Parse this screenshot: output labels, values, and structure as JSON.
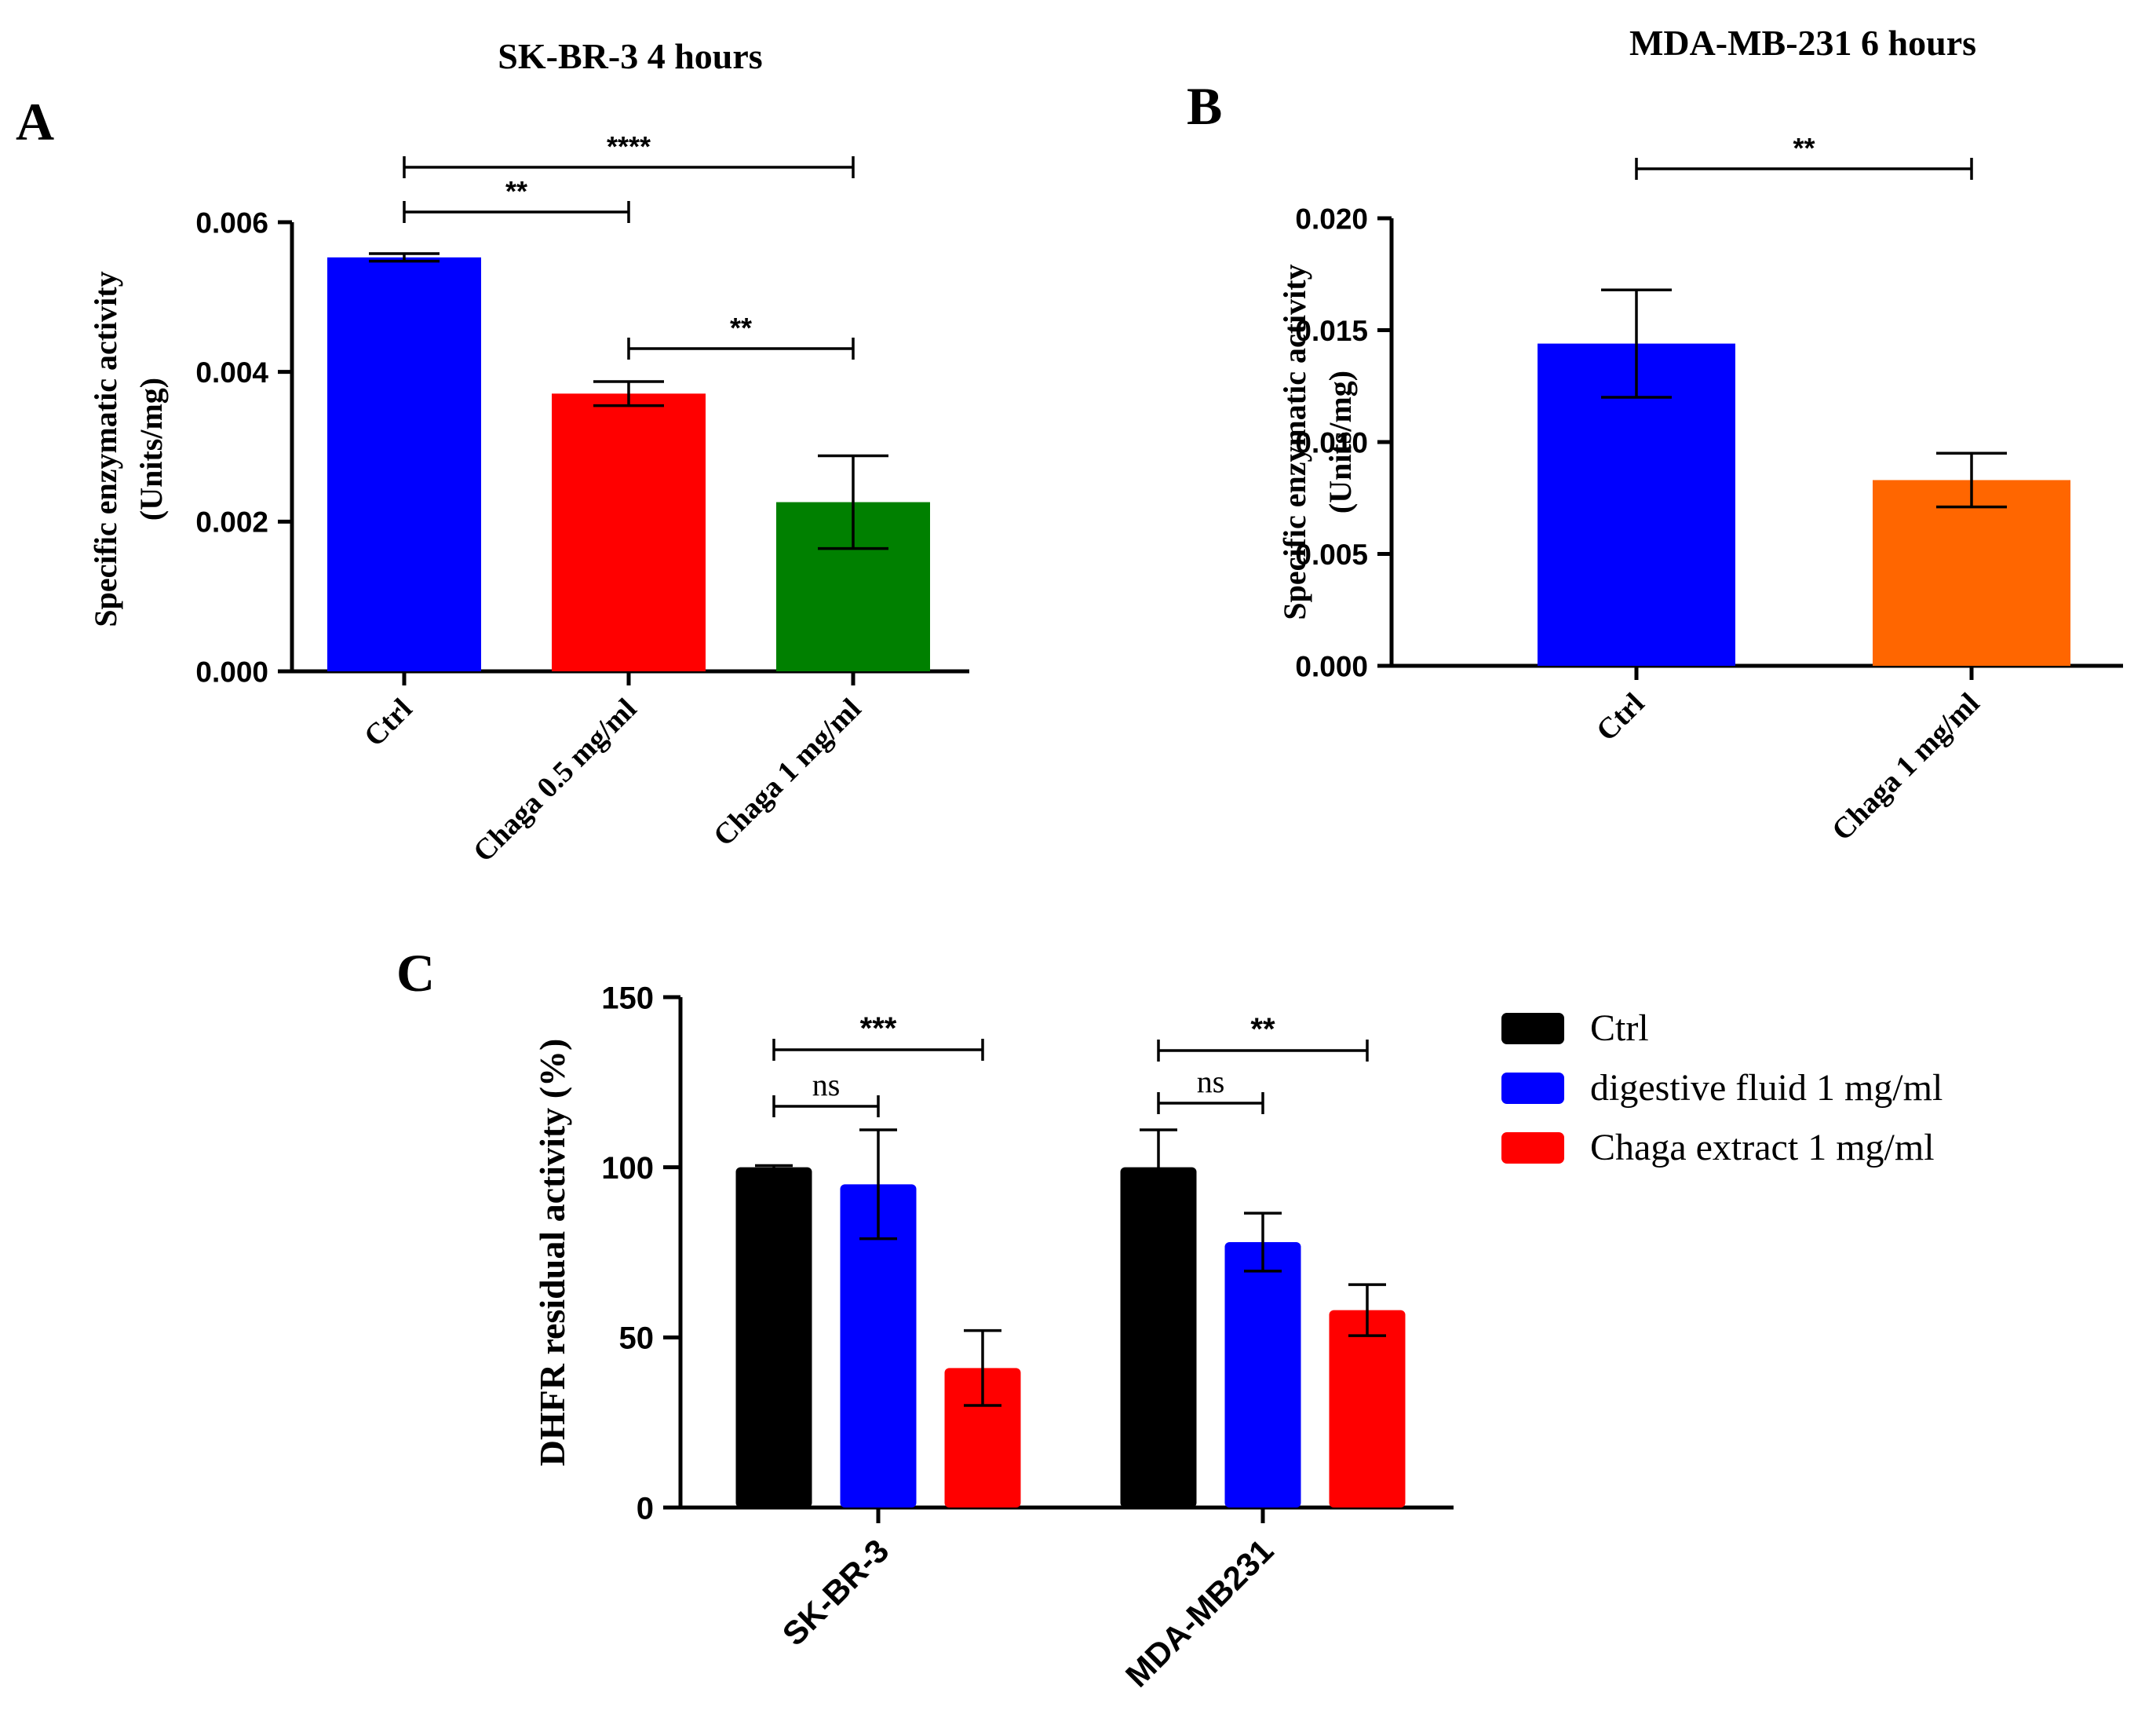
{
  "panels": {
    "A": {
      "letter": "A"
    },
    "B": {
      "letter": "B"
    },
    "C": {
      "letter": "C"
    }
  },
  "chart_data": [
    {
      "id": "A",
      "type": "bar",
      "title": "SK-BR-3 4 hours",
      "ylabel": [
        "Specific enzymatic activity",
        "(Units/mg)"
      ],
      "xlabel": "",
      "categories": [
        "Ctrl",
        "Chaga 0.5 mg/ml",
        "Chaga 1 mg/ml"
      ],
      "values": [
        0.00553,
        0.00371,
        0.00226
      ],
      "errors": [
        5e-05,
        0.00016,
        0.00062
      ],
      "colors": [
        "#0000ff",
        "#ff0000",
        "#008000"
      ],
      "ylim": [
        0,
        0.006
      ],
      "yticks": [
        0,
        0.002,
        0.004,
        0.006
      ],
      "ytick_labels": [
        "0.000",
        "0.002",
        "0.004",
        "0.006"
      ],
      "grid": false,
      "significance": [
        {
          "from": 0,
          "to": 1,
          "label": "**"
        },
        {
          "from": 0,
          "to": 2,
          "label": "****"
        },
        {
          "from": 1,
          "to": 2,
          "label": "**"
        }
      ]
    },
    {
      "id": "B",
      "type": "bar",
      "title": "MDA-MB-231 6 hours",
      "ylabel": [
        "Specific enzymatic activity",
        "(Units/mg)"
      ],
      "xlabel": "",
      "categories": [
        "Ctrl",
        "Chaga 1 mg/ml"
      ],
      "values": [
        0.0144,
        0.0083
      ],
      "errors": [
        0.0024,
        0.0012
      ],
      "colors": [
        "#0000ff",
        "#ff6600"
      ],
      "ylim": [
        0,
        0.02
      ],
      "yticks": [
        0,
        0.005,
        0.01,
        0.015,
        0.02
      ],
      "ytick_labels": [
        "0.000",
        "0.005",
        "0.010",
        "0.015",
        "0.020"
      ],
      "grid": false,
      "significance": [
        {
          "from": 0,
          "to": 1,
          "label": "**"
        }
      ]
    },
    {
      "id": "C",
      "type": "bar",
      "title": "",
      "ylabel": "DHFR residual activity (%)",
      "xlabel": "",
      "categories": [
        "SK-BR-3",
        "MDA-MB231"
      ],
      "series": [
        {
          "name": "Ctrl",
          "color": "#000000",
          "values": [
            100,
            100
          ],
          "errors": [
            0.5,
            11
          ]
        },
        {
          "name": "digestive fluid 1 mg/ml",
          "color": "#0000ff",
          "values": [
            95,
            78
          ],
          "errors": [
            16,
            8.5
          ]
        },
        {
          "name": "Chaga extract 1 mg/ml",
          "color": "#ff0000",
          "values": [
            41,
            58
          ],
          "errors": [
            11,
            7.5
          ]
        }
      ],
      "ylim": [
        0,
        150
      ],
      "yticks": [
        0,
        50,
        100,
        150
      ],
      "ytick_labels": [
        "0",
        "50",
        "100",
        "150"
      ],
      "legend": "right",
      "grid": false,
      "significance": [
        {
          "group": 0,
          "from": 0,
          "to": 1,
          "label": "ns"
        },
        {
          "group": 0,
          "from": 0,
          "to": 2,
          "label": "***"
        },
        {
          "group": 1,
          "from": 0,
          "to": 1,
          "label": "ns"
        },
        {
          "group": 1,
          "from": 0,
          "to": 2,
          "label": "**"
        }
      ]
    }
  ]
}
